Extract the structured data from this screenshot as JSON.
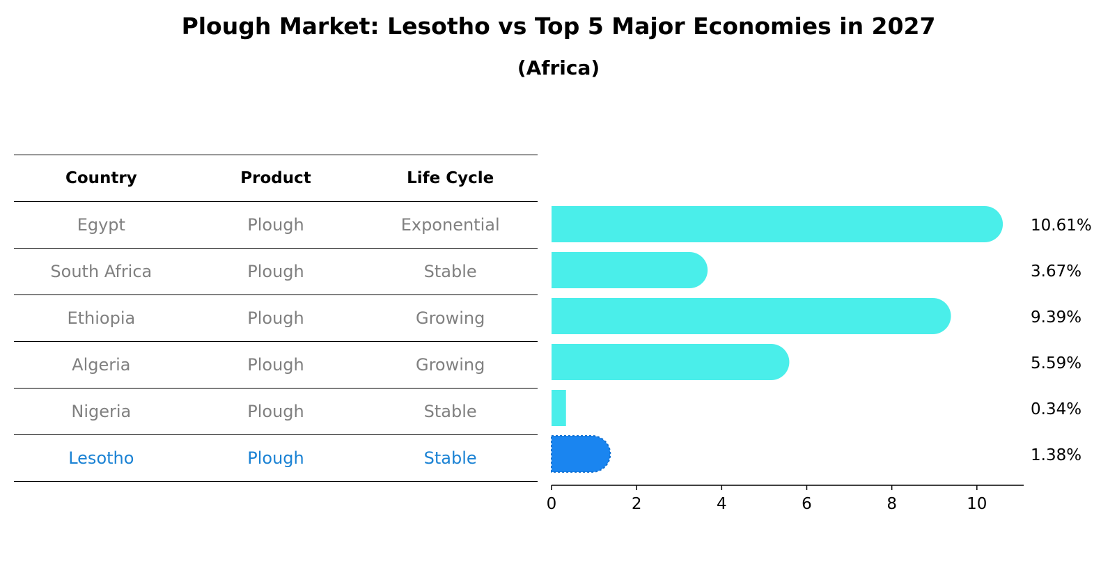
{
  "title": "Plough Market: Lesotho vs Top 5 Major Economies in 2027",
  "subtitle": "(Africa)",
  "table": {
    "headers": [
      "Country",
      "Product",
      "Life Cycle"
    ],
    "rows": [
      {
        "country": "Egypt",
        "product": "Plough",
        "life_cycle": "Exponential"
      },
      {
        "country": "South Africa",
        "product": "Plough",
        "life_cycle": "Stable"
      },
      {
        "country": "Ethiopia",
        "product": "Plough",
        "life_cycle": "Growing"
      },
      {
        "country": "Algeria",
        "product": "Plough",
        "life_cycle": "Growing"
      },
      {
        "country": "Nigeria",
        "product": "Plough",
        "life_cycle": "Stable"
      },
      {
        "country": "Lesotho",
        "product": "Plough",
        "life_cycle": "Stable"
      }
    ]
  },
  "colors": {
    "bar": "#4aeeea",
    "highlight_bar": "#1a85f0",
    "highlight_text": "#1a82d4",
    "muted_text": "#808080"
  },
  "chart_data": {
    "type": "bar",
    "orientation": "horizontal",
    "categories": [
      "Egypt",
      "South Africa",
      "Ethiopia",
      "Algeria",
      "Nigeria",
      "Lesotho"
    ],
    "values": [
      10.61,
      3.67,
      9.39,
      5.59,
      0.34,
      1.38
    ],
    "value_labels": [
      "10.61%",
      "3.67%",
      "9.39%",
      "5.59%",
      "0.34%",
      "1.38%"
    ],
    "highlight": "Lesotho",
    "xlim": [
      0,
      11.1
    ],
    "xticks": [
      0,
      2,
      4,
      6,
      8,
      10
    ],
    "xtick_labels": [
      "0",
      "2",
      "4",
      "6",
      "8",
      "10"
    ],
    "grid": false
  }
}
